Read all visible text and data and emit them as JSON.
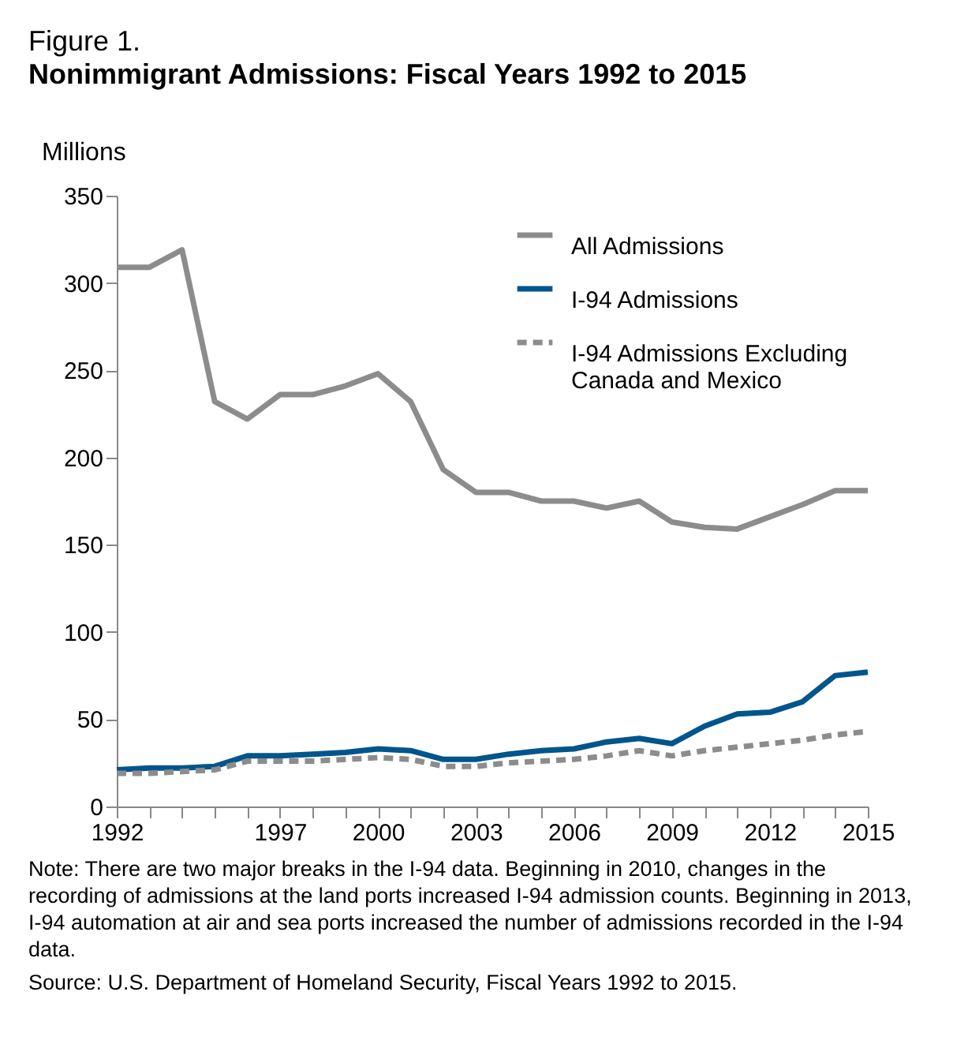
{
  "chart_data": {
    "type": "line",
    "title": "Figure 1.",
    "subtitle": "Nonimmigrant Admissions: Fiscal Years 1992 to 2015",
    "ylabel": "Millions",
    "annotations": [
      "Note: There are two major breaks in the I-94 data. Beginning in 2010, changes in the recording of admissions at the land ports increased I-94 admission counts. Beginning in 2013, I-94 automation at air and sea ports increased the number of admissions recorded in the I-94 data.",
      "Source: U.S. Department of Homeland Security, Fiscal Years 1992 to 2015."
    ],
    "x": [
      1992,
      1993,
      1994,
      1995,
      1996,
      1997,
      1998,
      1999,
      2000,
      2001,
      2002,
      2003,
      2004,
      2005,
      2006,
      2007,
      2008,
      2009,
      2010,
      2011,
      2012,
      2013,
      2014,
      2015
    ],
    "series": [
      {
        "name": "All Admissions",
        "color": "#8c8c8c",
        "line_style": "solid",
        "values": [
          309,
          309,
          319,
          232,
          222,
          236,
          236,
          241,
          248,
          232,
          193,
          180,
          180,
          175,
          175,
          171,
          175,
          163,
          160,
          159,
          166,
          173,
          181,
          181
        ]
      },
      {
        "name": "I-94 Admissions",
        "color": "#00558c",
        "line_style": "solid",
        "values": [
          21,
          22,
          22,
          23,
          29,
          29,
          30,
          31,
          33,
          32,
          27,
          27,
          30,
          32,
          33,
          37,
          39,
          36,
          46,
          53,
          54,
          60,
          75,
          77
        ]
      },
      {
        "name": "I-94 Admissions Excluding Canada and Mexico",
        "color": "#8c8c8c",
        "line_style": "dashed",
        "values": [
          19,
          19,
          20,
          21,
          26,
          26,
          26,
          27,
          28,
          27,
          23,
          23,
          25,
          26,
          27,
          29,
          32,
          29,
          32,
          34,
          36,
          38,
          41,
          43
        ]
      }
    ],
    "xlim": [
      1992,
      2015
    ],
    "xticks": [
      1992,
      {
        "value": 1993,
        "label": null
      },
      {
        "value": 1994,
        "label": null
      },
      {
        "value": 1995,
        "label": null
      },
      {
        "value": 1996,
        "label": null
      },
      1997,
      {
        "value": 1998,
        "label": null
      },
      {
        "value": 1999,
        "label": null
      },
      2000,
      {
        "value": 2001,
        "label": null
      },
      {
        "value": 2002,
        "label": null
      },
      2003,
      {
        "value": 2004,
        "label": null
      },
      {
        "value": 2005,
        "label": null
      },
      2006,
      {
        "value": 2007,
        "label": null
      },
      {
        "value": 2008,
        "label": null
      },
      2009,
      {
        "value": 2010,
        "label": null
      },
      {
        "value": 2011,
        "label": null
      },
      2012,
      {
        "value": 2013,
        "label": null
      },
      {
        "value": 2014,
        "label": null
      },
      2015
    ],
    "ylim": [
      0,
      350
    ],
    "yticks": [
      0,
      50,
      100,
      150,
      200,
      250,
      300,
      350
    ],
    "grid": false,
    "legend": "top right",
    "marker": "none"
  }
}
